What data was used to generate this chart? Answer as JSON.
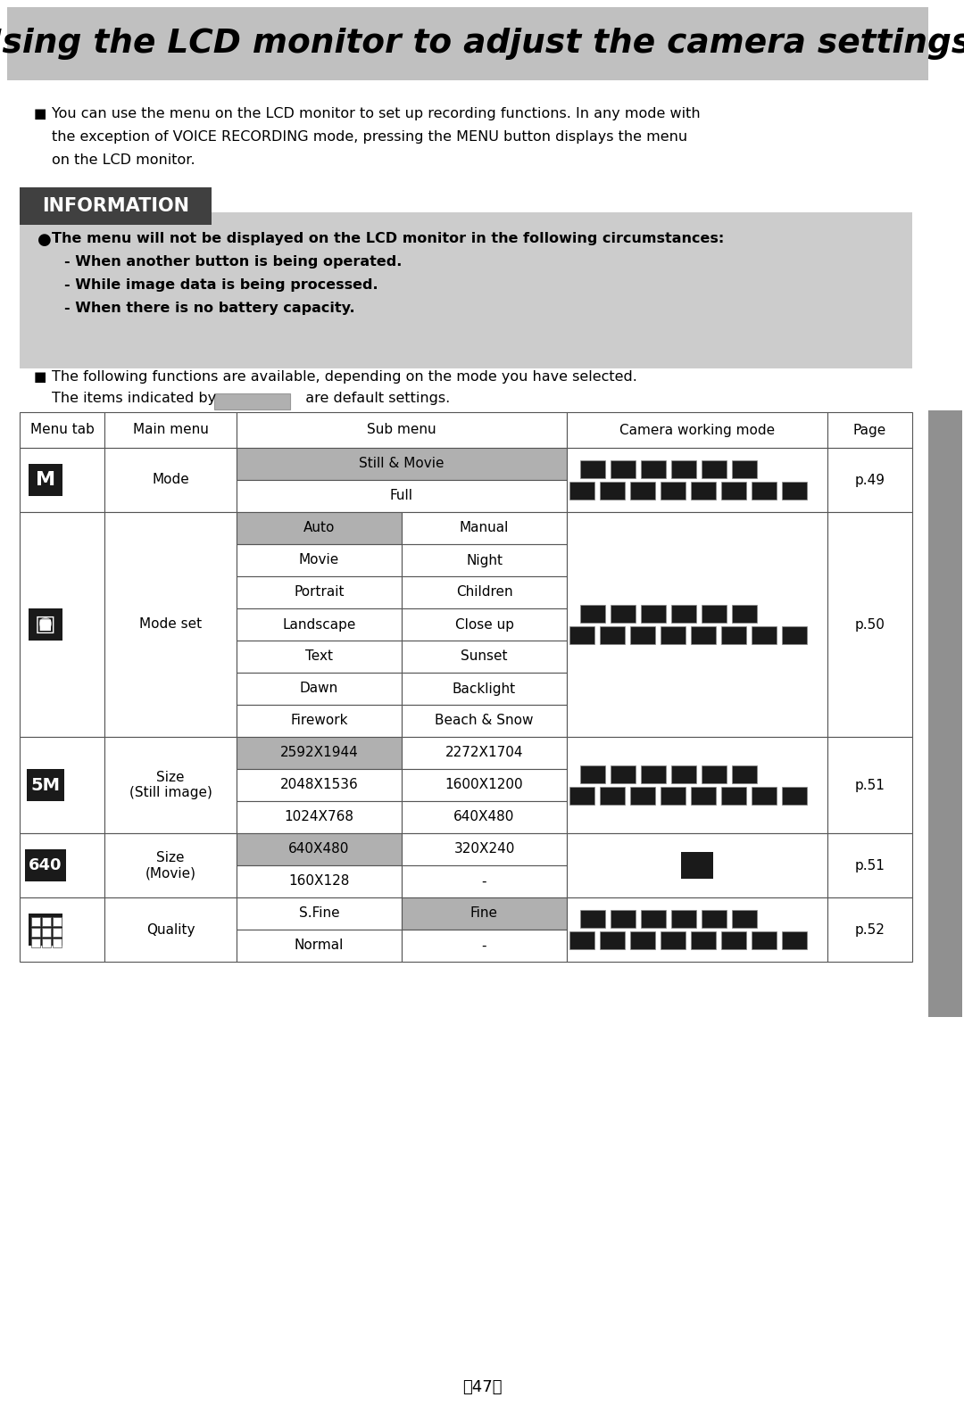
{
  "title": "Using the LCD monitor to adjust the camera settings",
  "title_bg": "#c0c0c0",
  "page_bg": "#ffffff",
  "sidebar_color": "#909090",
  "bullet_text1_line1": "You can use the menu on the LCD monitor to set up recording functions. In any mode with",
  "bullet_text1_line2": "the exception of VOICE RECORDING mode, pressing the MENU button displays the menu",
  "bullet_text1_line3": "on the LCD monitor.",
  "info_bg": "#cccccc",
  "info_header": "INFORMATION",
  "info_header_bg": "#404040",
  "info_header_text_color": "#ffffff",
  "info_line0": "The menu will not be displayed on the LCD monitor in the following circumstances:",
  "info_line1": "- When another button is being operated.",
  "info_line2": "- While image data is being processed.",
  "info_line3": "- When there is no battery capacity.",
  "note_line1": "The following functions are available, depending on the mode you have selected.",
  "note_line2": "The items indicated by",
  "note_line2b": "are default settings.",
  "col_headers": [
    "Menu tab",
    "Main menu",
    "Sub menu",
    "Camera working mode",
    "Page"
  ],
  "table_gray": "#b0b0b0",
  "table_white": "#ffffff",
  "table_border": "#555555",
  "icon_bg": "#1a1a1a",
  "icon_fg": "#ffffff",
  "page_number": "〈47〉"
}
